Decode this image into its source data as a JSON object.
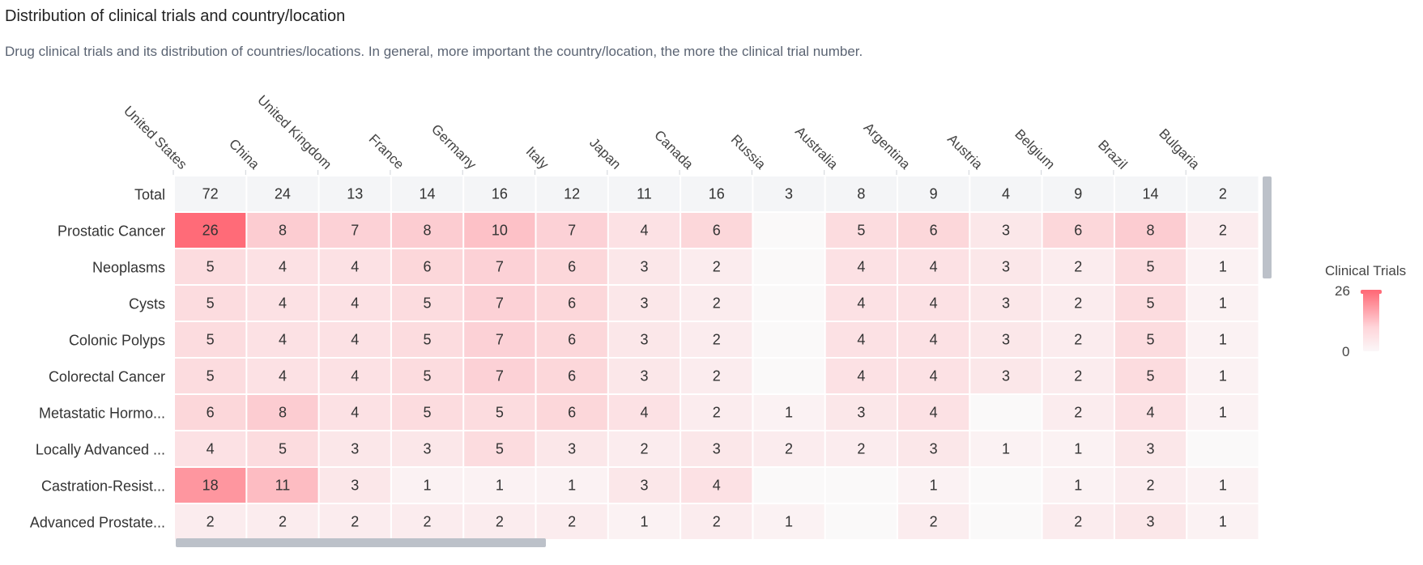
{
  "header": {
    "title": "Distribution of clinical trials and country/location",
    "subtitle": "Drug clinical trials and its distribution of countries/locations. In general, more important the country/location, the more the clinical trial number."
  },
  "legend": {
    "title": "Clinical Trials",
    "max_label": "26",
    "min_label": "0"
  },
  "colors": {
    "high": "#ff6b78",
    "low": "#fbf7f8",
    "total_row": "#f4f5f7",
    "text": "#333333"
  },
  "chart_data": {
    "type": "heatmap",
    "columns": [
      "United States",
      "China",
      "United Kingdom",
      "France",
      "Germany",
      "Italy",
      "Japan",
      "Canada",
      "Russia",
      "Australia",
      "Argentina",
      "Austria",
      "Belgium",
      "Brazil",
      "Bulgaria"
    ],
    "rows": [
      "Total",
      "Prostatic Cancer",
      "Neoplasms",
      "Cysts",
      "Colonic Polyps",
      "Colorectal Cancer",
      "Metastatic Hormo...",
      "Locally Advanced ...",
      "Castration-Resist...",
      "Advanced Prostate..."
    ],
    "values": [
      [
        72,
        24,
        13,
        14,
        16,
        12,
        11,
        16,
        3,
        8,
        9,
        4,
        9,
        14,
        2
      ],
      [
        26,
        8,
        7,
        8,
        10,
        7,
        4,
        6,
        null,
        5,
        6,
        3,
        6,
        8,
        2
      ],
      [
        5,
        4,
        4,
        6,
        7,
        6,
        3,
        2,
        null,
        4,
        4,
        3,
        2,
        5,
        1
      ],
      [
        5,
        4,
        4,
        5,
        7,
        6,
        3,
        2,
        null,
        4,
        4,
        3,
        2,
        5,
        1
      ],
      [
        5,
        4,
        4,
        5,
        7,
        6,
        3,
        2,
        null,
        4,
        4,
        3,
        2,
        5,
        1
      ],
      [
        5,
        4,
        4,
        5,
        7,
        6,
        3,
        2,
        null,
        4,
        4,
        3,
        2,
        5,
        1
      ],
      [
        6,
        8,
        4,
        5,
        5,
        6,
        4,
        2,
        1,
        3,
        4,
        null,
        2,
        4,
        1
      ],
      [
        4,
        5,
        3,
        3,
        5,
        3,
        2,
        3,
        2,
        2,
        3,
        1,
        1,
        3,
        null
      ],
      [
        18,
        11,
        3,
        1,
        1,
        1,
        3,
        4,
        null,
        null,
        1,
        null,
        1,
        2,
        1
      ],
      [
        2,
        2,
        2,
        2,
        2,
        2,
        1,
        2,
        1,
        null,
        2,
        null,
        2,
        3,
        1
      ]
    ],
    "color_range": [
      0,
      26
    ]
  }
}
